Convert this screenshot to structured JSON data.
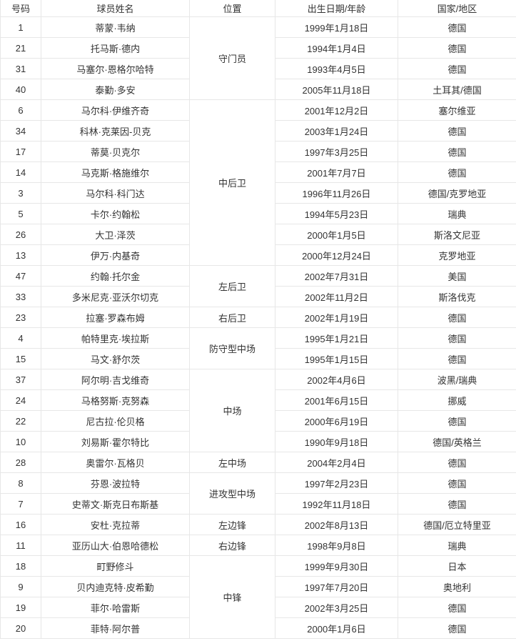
{
  "table": {
    "headers": {
      "number": "号码",
      "name": "球员姓名",
      "position": "位置",
      "birth": "出生日期/年龄",
      "country": "国家/地区"
    },
    "rows": [
      {
        "number": "1",
        "name": "蒂蒙·韦纳",
        "position": "守门员",
        "position_rowspan": 4,
        "birth": "1999年1月18日",
        "country": "德国"
      },
      {
        "number": "21",
        "name": "托马斯·德内",
        "birth": "1994年1月4日",
        "country": "德国"
      },
      {
        "number": "31",
        "name": "马塞尔·恩格尔哈特",
        "birth": "1993年4月5日",
        "country": "德国"
      },
      {
        "number": "40",
        "name": "泰勤·多安",
        "birth": "2005年11月18日",
        "country": "土耳其/德国"
      },
      {
        "number": "6",
        "name": "马尔科·伊维齐奇",
        "position": "中后卫",
        "position_rowspan": 8,
        "birth": "2001年12月2日",
        "country": "塞尔维亚"
      },
      {
        "number": "34",
        "name": "科林·克莱因-贝克",
        "birth": "2003年1月24日",
        "country": "德国"
      },
      {
        "number": "17",
        "name": "蒂莫·贝克尔",
        "birth": "1997年3月25日",
        "country": "德国"
      },
      {
        "number": "14",
        "name": "马克斯·格施维尔",
        "birth": "2001年7月7日",
        "country": "德国"
      },
      {
        "number": "3",
        "name": "马尔科·科门达",
        "birth": "1996年11月26日",
        "country": "德国/克罗地亚"
      },
      {
        "number": "5",
        "name": "卡尔·约翰松",
        "birth": "1994年5月23日",
        "country": "瑞典"
      },
      {
        "number": "26",
        "name": "大卫·泽茨",
        "birth": "2000年1月5日",
        "country": "斯洛文尼亚"
      },
      {
        "number": "13",
        "name": "伊万·内基奇",
        "birth": "2000年12月24日",
        "country": "克罗地亚"
      },
      {
        "number": "47",
        "name": "约翰·托尔金",
        "position": "左后卫",
        "position_rowspan": 2,
        "birth": "2002年7月31日",
        "country": "美国"
      },
      {
        "number": "33",
        "name": "多米尼克·亚沃尔切克",
        "birth": "2002年11月2日",
        "country": "斯洛伐克"
      },
      {
        "number": "23",
        "name": "拉塞·罗森布姆",
        "position": "右后卫",
        "position_rowspan": 1,
        "birth": "2002年1月19日",
        "country": "德国"
      },
      {
        "number": "4",
        "name": "帕特里克·埃拉斯",
        "position": "防守型中场",
        "position_rowspan": 2,
        "birth": "1995年1月21日",
        "country": "德国"
      },
      {
        "number": "15",
        "name": "马文·舒尔茨",
        "birth": "1995年1月15日",
        "country": "德国"
      },
      {
        "number": "37",
        "name": "阿尔明·吉戈维奇",
        "position": "中场",
        "position_rowspan": 4,
        "birth": "2002年4月6日",
        "country": "波黑/瑞典"
      },
      {
        "number": "24",
        "name": "马格努斯·克努森",
        "birth": "2001年6月15日",
        "country": "挪威"
      },
      {
        "number": "22",
        "name": "尼古拉·伦贝格",
        "birth": "2000年6月19日",
        "country": "德国"
      },
      {
        "number": "10",
        "name": "刘易斯·霍尔特比",
        "birth": "1990年9月18日",
        "country": "德国/英格兰"
      },
      {
        "number": "28",
        "name": "奥雷尔·瓦格贝",
        "position": "左中场",
        "position_rowspan": 1,
        "birth": "2004年2月4日",
        "country": "德国"
      },
      {
        "number": "8",
        "name": "芬恩·波拉特",
        "position": "进攻型中场",
        "position_rowspan": 2,
        "birth": "1997年2月23日",
        "country": "德国"
      },
      {
        "number": "7",
        "name": "史蒂文·斯克日布斯基",
        "birth": "1992年11月18日",
        "country": "德国"
      },
      {
        "number": "16",
        "name": "安杜·克拉蒂",
        "position": "左边锋",
        "position_rowspan": 1,
        "birth": "2002年8月13日",
        "country": "德国/厄立特里亚"
      },
      {
        "number": "11",
        "name": "亚历山大·伯恩哈德松",
        "position": "右边锋",
        "position_rowspan": 1,
        "birth": "1998年9月8日",
        "country": "瑞典"
      },
      {
        "number": "18",
        "name": "町野修斗",
        "position": "中锋",
        "position_rowspan": 4,
        "birth": "1999年9月30日",
        "country": "日本"
      },
      {
        "number": "9",
        "name": "贝内迪克特·皮希勤",
        "birth": "1997年7月20日",
        "country": "奥地利"
      },
      {
        "number": "19",
        "name": "菲尔·哈雷斯",
        "birth": "2002年3月25日",
        "country": "德国"
      },
      {
        "number": "20",
        "name": "菲特·阿尔普",
        "birth": "2000年1月6日",
        "country": "德国"
      }
    ]
  }
}
